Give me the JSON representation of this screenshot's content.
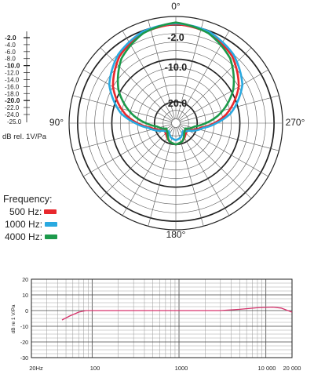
{
  "chart_data": [
    {
      "type": "polar",
      "angle_labels": [
        "0°",
        "90°",
        "180°",
        "270°"
      ],
      "ring_labels": [
        "-2.0",
        "-10.0",
        "-20.0"
      ],
      "scale": {
        "ticks": [
          "-2.0",
          "-4.0",
          "-6.0",
          "-8.0",
          "-10.0",
          "-12.0",
          "-14.0",
          "-16.0",
          "-18.0",
          "-20.0",
          "-22.0",
          "-24.0"
        ],
        "bold_ticks": [
          "-2.0",
          "-10.0",
          "-20.0"
        ],
        "end_label": "-25.0",
        "unit_label": "dB rel. 1V/Pa",
        "range_db": [
          -25,
          0
        ]
      },
      "legend_title": "Frequency:",
      "series": [
        {
          "name": "500 Hz:",
          "color": "#e8282d",
          "pattern": [
            [
              0,
              -1.8
            ],
            [
              20,
              -2.5
            ],
            [
              40,
              -4.5
            ],
            [
              60,
              -8
            ],
            [
              80,
              -13
            ],
            [
              90,
              -16
            ],
            [
              100,
              -19
            ],
            [
              120,
              -22
            ],
            [
              140,
              -21.5
            ],
            [
              160,
              -20.5
            ],
            [
              180,
              -20
            ]
          ]
        },
        {
          "name": "1000 Hz:",
          "color": "#2aa9e0",
          "pattern": [
            [
              0,
              -1.6
            ],
            [
              20,
              -2.2
            ],
            [
              40,
              -4
            ],
            [
              60,
              -7
            ],
            [
              80,
              -12
            ],
            [
              90,
              -15.5
            ],
            [
              100,
              -18.5
            ],
            [
              120,
              -21.5
            ],
            [
              140,
              -22.5
            ],
            [
              160,
              -21.5
            ],
            [
              180,
              -21
            ]
          ]
        },
        {
          "name": "4000 Hz:",
          "color": "#1c9a4b",
          "pattern": [
            [
              0,
              -1.4
            ],
            [
              20,
              -2.6
            ],
            [
              40,
              -5.2
            ],
            [
              60,
              -9.5
            ],
            [
              80,
              -15
            ],
            [
              90,
              -18
            ],
            [
              100,
              -20.5
            ],
            [
              120,
              -22.5
            ],
            [
              140,
              -22
            ],
            [
              160,
              -20.5
            ],
            [
              180,
              -20
            ]
          ]
        }
      ]
    },
    {
      "type": "line",
      "x_ticks": [
        "20Hz",
        "100",
        "1000",
        "10 000",
        "20 000"
      ],
      "xlim": [
        20,
        20000
      ],
      "x_scale": "log",
      "y_ticks": [
        "20",
        "10",
        "0",
        "-10",
        "-20",
        "-30"
      ],
      "ylim": [
        -30,
        20
      ],
      "ylabel": "dB re 1 V/Pa",
      "grid": true,
      "series": [
        {
          "color": "#d6336c",
          "points": [
            [
              45,
              -6
            ],
            [
              55,
              -3.5
            ],
            [
              70,
              -1
            ],
            [
              85,
              0
            ],
            [
              200,
              0
            ],
            [
              1000,
              0
            ],
            [
              3000,
              0
            ],
            [
              5000,
              0.8
            ],
            [
              8000,
              1.8
            ],
            [
              12000,
              2.2
            ],
            [
              15000,
              1.6
            ],
            [
              20000,
              -1
            ]
          ]
        }
      ]
    }
  ]
}
